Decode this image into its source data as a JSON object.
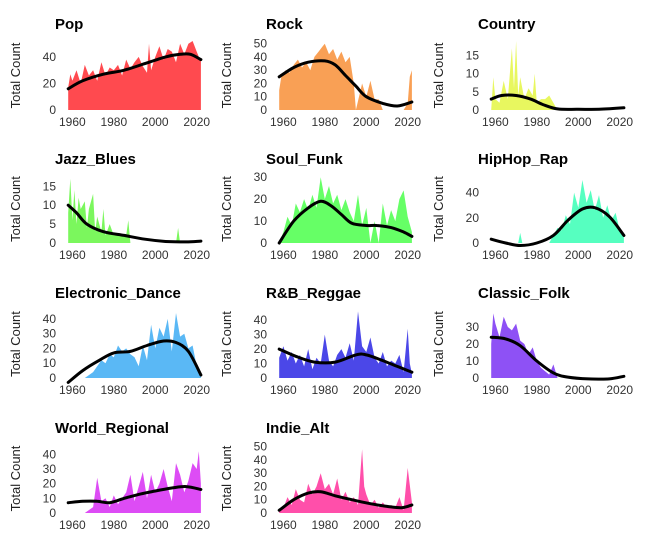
{
  "chart_data": {
    "type": "area",
    "layout": "facet-grid-4x3",
    "ylabel": "Total Count",
    "xlim": [
      1955,
      2024
    ],
    "x_ticks": [
      1960,
      1980,
      2000,
      2020
    ],
    "grid": false,
    "legend": "none",
    "trend_color": "#000000",
    "panels": [
      {
        "name": "Pop",
        "color": "#FF4A4F",
        "ylim": [
          0,
          52
        ],
        "y_ticks": [
          0,
          20,
          40
        ],
        "x": [
          1958,
          1959,
          1960,
          1962,
          1964,
          1966,
          1968,
          1970,
          1972,
          1974,
          1976,
          1978,
          1980,
          1982,
          1984,
          1986,
          1988,
          1990,
          1992,
          1994,
          1996,
          1997,
          1998,
          2000,
          2002,
          2004,
          2006,
          2008,
          2010,
          2012,
          2014,
          2016,
          2018,
          2020,
          2021,
          2022
        ],
        "values": [
          17,
          27,
          22,
          30,
          20,
          34,
          26,
          30,
          22,
          36,
          26,
          32,
          30,
          34,
          26,
          38,
          31,
          36,
          40,
          33,
          28,
          50,
          30,
          40,
          48,
          38,
          46,
          44,
          36,
          50,
          42,
          50,
          52,
          44,
          40,
          38
        ],
        "trend": [
          [
            1958,
            16
          ],
          [
            1965,
            22
          ],
          [
            1975,
            27
          ],
          [
            1985,
            30
          ],
          [
            1995,
            35
          ],
          [
            2005,
            40
          ],
          [
            2012,
            42
          ],
          [
            2017,
            42
          ],
          [
            2022,
            38
          ]
        ]
      },
      {
        "name": "Rock",
        "color": "#F9A055",
        "ylim": [
          0,
          52
        ],
        "y_ticks": [
          0,
          10,
          20,
          30,
          40,
          50
        ],
        "x": [
          1958,
          1959,
          1961,
          1963,
          1965,
          1967,
          1969,
          1971,
          1973,
          1975,
          1977,
          1979,
          1980,
          1982,
          1984,
          1986,
          1988,
          1990,
          1992,
          1994,
          1995,
          1998,
          2000,
          2002,
          2004,
          2006,
          2008,
          2018,
          2020,
          2021,
          2022
        ],
        "values": [
          15,
          25,
          30,
          28,
          34,
          38,
          32,
          36,
          30,
          40,
          44,
          48,
          50,
          42,
          46,
          38,
          44,
          36,
          40,
          20,
          0,
          20,
          10,
          22,
          8,
          8,
          0,
          0,
          5,
          25,
          30
        ],
        "trend": [
          [
            1958,
            25
          ],
          [
            1965,
            32
          ],
          [
            1972,
            36
          ],
          [
            1980,
            37
          ],
          [
            1985,
            34
          ],
          [
            1990,
            26
          ],
          [
            1995,
            18
          ],
          [
            2000,
            10
          ],
          [
            2008,
            5
          ],
          [
            2015,
            3
          ],
          [
            2022,
            6
          ]
        ]
      },
      {
        "name": "Country",
        "color": "#E8F75F",
        "ylim": [
          0,
          19
        ],
        "y_ticks": [
          0,
          5,
          10,
          15
        ],
        "x": [
          1958,
          1959,
          1960,
          1962,
          1964,
          1966,
          1968,
          1969,
          1970,
          1971,
          1972,
          1974,
          1976,
          1978,
          1979,
          1980,
          1982,
          1984,
          1986,
          1990,
          2020,
          2022
        ],
        "values": [
          0,
          9,
          3,
          2,
          8,
          3,
          17,
          6,
          19,
          4,
          9,
          3,
          6,
          4,
          10,
          2,
          3,
          3,
          4,
          0,
          0,
          0
        ],
        "trend": [
          [
            1958,
            3
          ],
          [
            1963,
            4
          ],
          [
            1970,
            4
          ],
          [
            1977,
            3
          ],
          [
            1983,
            1.5
          ],
          [
            1990,
            0.3
          ],
          [
            2000,
            0.2
          ],
          [
            2010,
            0.2
          ],
          [
            2022,
            0.6
          ]
        ]
      },
      {
        "name": "Jazz_Blues",
        "color": "#7BF75D",
        "ylim": [
          0,
          18
        ],
        "y_ticks": [
          0,
          5,
          10,
          15
        ],
        "x": [
          1958,
          1959,
          1960,
          1961,
          1962,
          1963,
          1964,
          1966,
          1967,
          1968,
          1970,
          1971,
          1972,
          1974,
          1975,
          1976,
          1978,
          1980,
          1986,
          1987,
          1988,
          1990,
          2010,
          2011,
          2012,
          2022
        ],
        "values": [
          8,
          17,
          6,
          14,
          5,
          12,
          9,
          11,
          4,
          9,
          13,
          3,
          7,
          3,
          9,
          2,
          5,
          2,
          2,
          6,
          0,
          0,
          0,
          4,
          0,
          0
        ],
        "trend": [
          [
            1958,
            10
          ],
          [
            1962,
            8
          ],
          [
            1967,
            5
          ],
          [
            1975,
            3
          ],
          [
            1985,
            2
          ],
          [
            1995,
            1
          ],
          [
            2005,
            0.4
          ],
          [
            2015,
            0.3
          ],
          [
            2022,
            0.5
          ]
        ]
      },
      {
        "name": "Soul_Funk",
        "color": "#66FF66",
        "ylim": [
          0,
          31
        ],
        "y_ticks": [
          0,
          10,
          20,
          30
        ],
        "x": [
          1958,
          1960,
          1962,
          1964,
          1966,
          1968,
          1970,
          1972,
          1974,
          1976,
          1978,
          1980,
          1982,
          1984,
          1986,
          1988,
          1990,
          1992,
          1994,
          1996,
          1998,
          2000,
          2002,
          2004,
          2006,
          2008,
          2010,
          2012,
          2014,
          2016,
          2018,
          2020,
          2022
        ],
        "values": [
          0,
          5,
          12,
          8,
          18,
          14,
          20,
          15,
          22,
          16,
          30,
          20,
          26,
          18,
          22,
          15,
          20,
          14,
          10,
          22,
          8,
          16,
          0,
          10,
          0,
          18,
          8,
          15,
          10,
          20,
          24,
          12,
          5
        ],
        "trend": [
          [
            1958,
            0
          ],
          [
            1965,
            10
          ],
          [
            1972,
            16
          ],
          [
            1978,
            19
          ],
          [
            1983,
            17
          ],
          [
            1988,
            13
          ],
          [
            1993,
            9
          ],
          [
            2000,
            8
          ],
          [
            2005,
            8
          ],
          [
            2012,
            7
          ],
          [
            2018,
            5
          ],
          [
            2022,
            3
          ]
        ]
      },
      {
        "name": "HipHop_Rap",
        "color": "#56FFC0",
        "ylim": [
          0,
          54
        ],
        "y_ticks": [
          0,
          20,
          40
        ],
        "x": [
          1958,
          1971,
          1972,
          1973,
          1974,
          1986,
          1988,
          1990,
          1992,
          1994,
          1996,
          1998,
          2000,
          2002,
          2004,
          2006,
          2008,
          2010,
          2012,
          2014,
          2016,
          2018,
          2020,
          2022
        ],
        "values": [
          0,
          0,
          8,
          0,
          0,
          0,
          6,
          12,
          10,
          22,
          15,
          40,
          28,
          50,
          32,
          42,
          26,
          38,
          20,
          30,
          18,
          24,
          10,
          8
        ],
        "trend": [
          [
            1958,
            3
          ],
          [
            1965,
            0
          ],
          [
            1972,
            -2
          ],
          [
            1980,
            0
          ],
          [
            1988,
            6
          ],
          [
            1995,
            18
          ],
          [
            2002,
            27
          ],
          [
            2008,
            28
          ],
          [
            2015,
            21
          ],
          [
            2022,
            6
          ]
        ]
      },
      {
        "name": "Electronic_Dance",
        "color": "#5AB8F5",
        "ylim": [
          0,
          46
        ],
        "y_ticks": [
          0,
          10,
          20,
          30,
          40
        ],
        "x": [
          1958,
          1962,
          1966,
          1970,
          1972,
          1974,
          1976,
          1978,
          1980,
          1982,
          1984,
          1986,
          1988,
          1990,
          1992,
          1994,
          1996,
          1998,
          2000,
          2002,
          2004,
          2006,
          2008,
          2010,
          2012,
          2014,
          2016,
          2018,
          2020,
          2022
        ],
        "values": [
          0,
          0,
          0,
          4,
          8,
          12,
          10,
          16,
          14,
          22,
          18,
          20,
          16,
          14,
          8,
          22,
          12,
          36,
          20,
          34,
          28,
          40,
          18,
          44,
          28,
          30,
          20,
          22,
          8,
          2
        ],
        "trend": [
          [
            1958,
            -3
          ],
          [
            1965,
            5
          ],
          [
            1973,
            12
          ],
          [
            1980,
            17
          ],
          [
            1988,
            18
          ],
          [
            1996,
            22
          ],
          [
            2004,
            25
          ],
          [
            2010,
            24
          ],
          [
            2016,
            18
          ],
          [
            2022,
            2
          ]
        ]
      },
      {
        "name": "R&B_Reggae",
        "color": "#4B47E8",
        "ylim": [
          0,
          47
        ],
        "y_ticks": [
          0,
          10,
          20,
          30,
          40
        ],
        "x": [
          1958,
          1960,
          1962,
          1964,
          1966,
          1968,
          1970,
          1972,
          1974,
          1976,
          1978,
          1980,
          1982,
          1984,
          1986,
          1988,
          1990,
          1992,
          1994,
          1996,
          1998,
          2000,
          2002,
          2004,
          2006,
          2008,
          2010,
          2012,
          2014,
          2016,
          2018,
          2020,
          2021,
          2022
        ],
        "values": [
          14,
          22,
          12,
          18,
          10,
          16,
          8,
          20,
          6,
          14,
          10,
          30,
          12,
          8,
          16,
          20,
          14,
          24,
          12,
          46,
          22,
          18,
          28,
          14,
          10,
          18,
          8,
          12,
          10,
          16,
          4,
          34,
          10,
          3
        ],
        "trend": [
          [
            1958,
            20
          ],
          [
            1966,
            15
          ],
          [
            1975,
            11
          ],
          [
            1985,
            11
          ],
          [
            1995,
            16
          ],
          [
            2000,
            16
          ],
          [
            2008,
            12
          ],
          [
            2015,
            8
          ],
          [
            2022,
            4
          ]
        ]
      },
      {
        "name": "Classic_Folk",
        "color": "#8E51F5",
        "ylim": [
          0,
          40
        ],
        "y_ticks": [
          0,
          10,
          20,
          30
        ],
        "x": [
          1958,
          1959,
          1960,
          1962,
          1964,
          1966,
          1968,
          1970,
          1972,
          1974,
          1976,
          1978,
          1980,
          1982,
          1984,
          1986,
          1988,
          1990,
          1992
        ],
        "values": [
          20,
          38,
          32,
          24,
          36,
          30,
          28,
          32,
          22,
          20,
          14,
          18,
          10,
          6,
          4,
          2,
          8,
          0,
          0
        ],
        "trend": [
          [
            1958,
            24
          ],
          [
            1965,
            23
          ],
          [
            1972,
            19
          ],
          [
            1980,
            10
          ],
          [
            1988,
            3
          ],
          [
            1995,
            0.5
          ],
          [
            2005,
            -0.5
          ],
          [
            2015,
            -0.5
          ],
          [
            2022,
            1
          ]
        ]
      },
      {
        "name": "World_Regional",
        "color": "#DD4CF5",
        "ylim": [
          0,
          47
        ],
        "y_ticks": [
          0,
          10,
          20,
          30,
          40
        ],
        "x": [
          1958,
          1962,
          1966,
          1970,
          1972,
          1974,
          1976,
          1978,
          1980,
          1982,
          1984,
          1986,
          1988,
          1990,
          1992,
          1994,
          1996,
          1998,
          2000,
          2002,
          2004,
          2006,
          2008,
          2010,
          2012,
          2014,
          2016,
          2018,
          2020,
          2021,
          2022
        ],
        "values": [
          0,
          0,
          0,
          4,
          24,
          8,
          10,
          4,
          12,
          6,
          10,
          14,
          26,
          8,
          18,
          28,
          10,
          26,
          14,
          20,
          30,
          18,
          8,
          34,
          26,
          14,
          22,
          34,
          30,
          42,
          20
        ],
        "trend": [
          [
            1958,
            7
          ],
          [
            1965,
            8
          ],
          [
            1972,
            8
          ],
          [
            1978,
            7
          ],
          [
            1985,
            10
          ],
          [
            1993,
            13
          ],
          [
            2000,
            15
          ],
          [
            2008,
            17
          ],
          [
            2015,
            18
          ],
          [
            2022,
            16
          ]
        ]
      },
      {
        "name": "Indie_Alt",
        "color": "#FF4FAA",
        "ylim": [
          0,
          52
        ],
        "y_ticks": [
          0,
          10,
          20,
          30,
          40,
          50
        ],
        "x": [
          1958,
          1960,
          1962,
          1964,
          1966,
          1968,
          1970,
          1972,
          1974,
          1976,
          1978,
          1980,
          1982,
          1984,
          1986,
          1988,
          1990,
          1992,
          1994,
          1996,
          1998,
          1999,
          2000,
          2002,
          2004,
          2006,
          2008,
          2010,
          2012,
          2014,
          2016,
          2018,
          2020,
          2022
        ],
        "values": [
          2,
          4,
          12,
          6,
          18,
          10,
          8,
          22,
          14,
          20,
          30,
          18,
          22,
          14,
          26,
          10,
          16,
          8,
          12,
          6,
          48,
          20,
          14,
          6,
          10,
          4,
          8,
          4,
          6,
          4,
          12,
          2,
          34,
          8
        ],
        "trend": [
          [
            1958,
            2
          ],
          [
            1965,
            10
          ],
          [
            1972,
            15
          ],
          [
            1978,
            16
          ],
          [
            1985,
            13
          ],
          [
            1993,
            10
          ],
          [
            2002,
            7
          ],
          [
            2010,
            5
          ],
          [
            2017,
            4
          ],
          [
            2022,
            6
          ]
        ]
      }
    ]
  }
}
